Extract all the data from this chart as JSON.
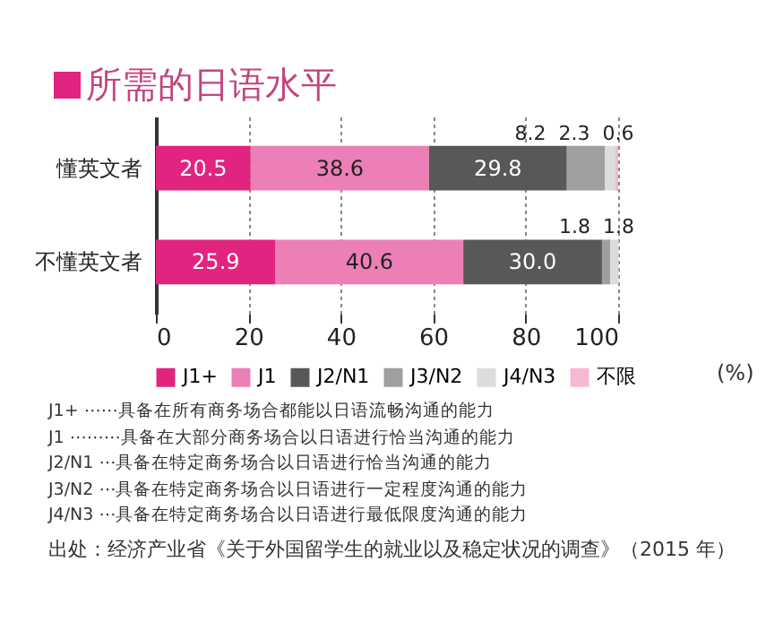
{
  "chart_data": {
    "type": "bar",
    "orientation": "horizontal",
    "stacked": true,
    "title": "所需的日语水平",
    "categories": [
      "懂英文者",
      "不懂英文者"
    ],
    "series": [
      {
        "name": "J1+",
        "color": "#e0247f",
        "values": [
          20.5,
          25.9
        ],
        "value_labels": [
          "20.5",
          "25.9"
        ]
      },
      {
        "name": "J1",
        "color": "#ec80b6",
        "values": [
          38.6,
          40.6
        ],
        "value_labels": [
          "38.6",
          "40.6"
        ]
      },
      {
        "name": "J2/N1",
        "color": "#595757",
        "values": [
          29.8,
          30.0
        ],
        "value_labels": [
          "29.8",
          "30.0"
        ]
      },
      {
        "name": "J3/N2",
        "color": "#9f9fa0",
        "values": [
          8.2,
          1.8
        ],
        "value_labels": [
          "8.2",
          "1.8"
        ]
      },
      {
        "name": "J4/N3",
        "color": "#dcdcdc",
        "values": [
          2.3,
          1.8
        ],
        "value_labels": [
          "2.3",
          "1.8"
        ]
      },
      {
        "name": "不限",
        "color": "#f5b9d4",
        "values": [
          0.6,
          null
        ],
        "value_labels": [
          "0.6",
          null
        ]
      }
    ],
    "xlim": [
      0,
      100
    ],
    "xticks": [
      0,
      20,
      40,
      60,
      80,
      100
    ],
    "grid": "x",
    "legend": "bottom",
    "annotations": [
      "(%)",
      "J1+ ⋯⋯具备在所有商务场合都能以日语流畅沟通的能力",
      "J1 ⋯⋯⋯具备在大部分商务场合以日语进行恰当沟通的能力",
      "J2/N1 ⋯具备在特定商务场合以日语进行恰当沟通的能力",
      "J3/N2 ⋯具备在特定商务场合以日语进行一定程度沟通的能力",
      "J4/N3 ⋯具备在特定商务场合以日语进行最低限度沟通的能力",
      "出处：经济产业省《关于外国留学生的就业以及稳定状况的调查》（2015 年）"
    ]
  }
}
